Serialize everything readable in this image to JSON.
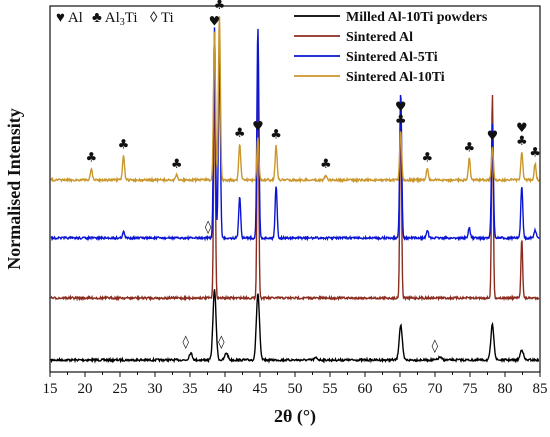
{
  "chart_data": {
    "type": "line",
    "xlabel": "2θ (°)",
    "ylabel": "Normalised Intensity",
    "xlim": [
      15,
      85
    ],
    "x_ticks": [
      15,
      20,
      25,
      30,
      35,
      40,
      45,
      50,
      55,
      60,
      65,
      70,
      75,
      80,
      85
    ],
    "grid": false,
    "legend_position": "top-right",
    "phase_key": [
      {
        "symbol": "♥",
        "label": "Al"
      },
      {
        "symbol": "♣",
        "label": "Al",
        "sub": "3",
        "suffix": "Ti"
      },
      {
        "symbol": "◊",
        "label": "Ti"
      }
    ],
    "series": [
      {
        "name": "Milled Al-10Ti powders",
        "color": "#000000",
        "peaks": [
          {
            "x": 35.1,
            "h": 0.1
          },
          {
            "x": 38.5,
            "h": 1.0
          },
          {
            "x": 40.2,
            "h": 0.1
          },
          {
            "x": 44.7,
            "h": 0.95
          },
          {
            "x": 53.0,
            "h": 0.03
          },
          {
            "x": 65.1,
            "h": 0.5
          },
          {
            "x": 70.7,
            "h": 0.04
          },
          {
            "x": 78.2,
            "h": 0.5
          },
          {
            "x": 82.4,
            "h": 0.15
          }
        ]
      },
      {
        "name": "Sintered Al",
        "color": "#8b2c1e",
        "peaks": [
          {
            "x": 38.5,
            "h": 1.0
          },
          {
            "x": 44.7,
            "h": 1.0
          },
          {
            "x": 65.1,
            "h": 0.85
          },
          {
            "x": 78.2,
            "h": 0.85
          },
          {
            "x": 82.4,
            "h": 0.25
          }
        ]
      },
      {
        "name": "Sintered Al-5Ti",
        "color": "#0a14d2",
        "peaks": [
          {
            "x": 25.5,
            "h": 0.03
          },
          {
            "x": 38.5,
            "h": 1.0
          },
          {
            "x": 39.2,
            "h": 0.9
          },
          {
            "x": 42.1,
            "h": 0.2
          },
          {
            "x": 44.7,
            "h": 1.0
          },
          {
            "x": 47.3,
            "h": 0.25
          },
          {
            "x": 65.1,
            "h": 0.7
          },
          {
            "x": 68.9,
            "h": 0.04
          },
          {
            "x": 74.9,
            "h": 0.05
          },
          {
            "x": 78.2,
            "h": 0.55
          },
          {
            "x": 82.4,
            "h": 0.25
          },
          {
            "x": 84.3,
            "h": 0.04
          }
        ]
      },
      {
        "name": "Sintered Al-10Ti",
        "color": "#c9972c",
        "peaks": [
          {
            "x": 20.9,
            "h": 0.07
          },
          {
            "x": 25.5,
            "h": 0.15
          },
          {
            "x": 33.1,
            "h": 0.03
          },
          {
            "x": 38.5,
            "h": 0.9
          },
          {
            "x": 39.2,
            "h": 1.0
          },
          {
            "x": 42.1,
            "h": 0.22
          },
          {
            "x": 44.7,
            "h": 0.26
          },
          {
            "x": 47.3,
            "h": 0.21
          },
          {
            "x": 54.4,
            "h": 0.03
          },
          {
            "x": 65.1,
            "h": 0.3
          },
          {
            "x": 68.9,
            "h": 0.07
          },
          {
            "x": 74.9,
            "h": 0.13
          },
          {
            "x": 78.2,
            "h": 0.2
          },
          {
            "x": 82.4,
            "h": 0.17
          },
          {
            "x": 84.3,
            "h": 0.1
          }
        ]
      }
    ],
    "annotations": [
      {
        "symbol": "♣",
        "x": 20.9,
        "series": 3
      },
      {
        "symbol": "♣",
        "x": 25.5,
        "series": 3
      },
      {
        "symbol": "♣",
        "x": 33.1,
        "series": 3
      },
      {
        "symbol": "♥",
        "x": 38.5,
        "series": 3
      },
      {
        "symbol": "♣",
        "x": 39.2,
        "series": 3
      },
      {
        "symbol": "♣",
        "x": 42.1,
        "series": 3
      },
      {
        "symbol": "♥",
        "x": 44.7,
        "series": 3
      },
      {
        "symbol": "♣",
        "x": 47.3,
        "series": 3
      },
      {
        "symbol": "♣",
        "x": 54.4,
        "series": 3
      },
      {
        "symbol": "♥",
        "x": 65.1,
        "series": 3,
        "stack": 1
      },
      {
        "symbol": "♣",
        "x": 65.1,
        "series": 3
      },
      {
        "symbol": "♣",
        "x": 68.9,
        "series": 3
      },
      {
        "symbol": "♣",
        "x": 74.9,
        "series": 3
      },
      {
        "symbol": "♥",
        "x": 78.2,
        "series": 3
      },
      {
        "symbol": "♥",
        "x": 82.4,
        "series": 3,
        "stack": 1
      },
      {
        "symbol": "♣",
        "x": 82.4,
        "series": 3
      },
      {
        "symbol": "♣",
        "x": 84.3,
        "series": 3
      },
      {
        "symbol": "◊",
        "x": 38.3,
        "series": 1
      },
      {
        "symbol": "◊",
        "x": 35.1,
        "series": 0
      },
      {
        "symbol": "◊",
        "x": 40.2,
        "series": 0
      },
      {
        "symbol": "◊",
        "x": 70.7,
        "series": 0
      }
    ]
  }
}
